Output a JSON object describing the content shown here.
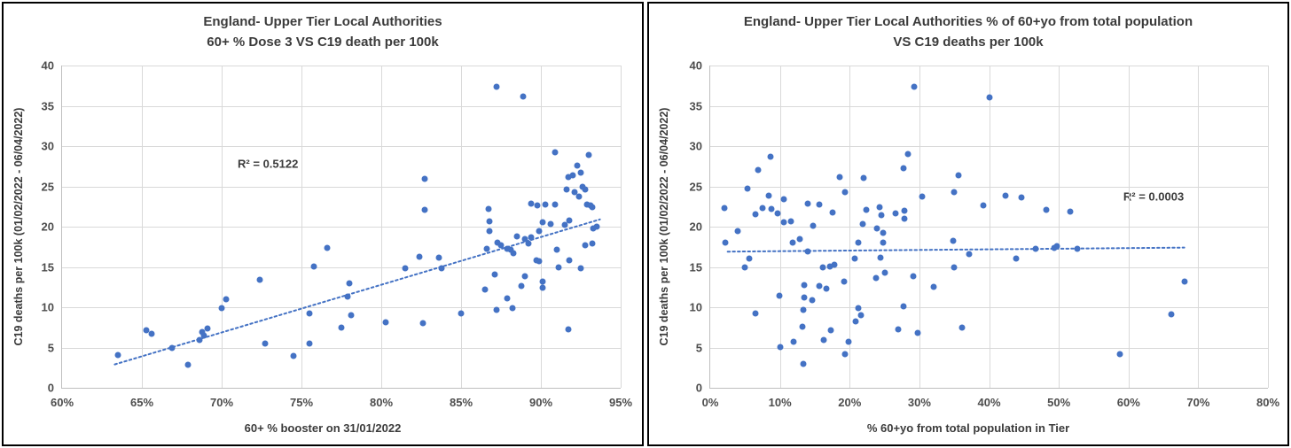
{
  "page": {
    "background": "#ffffff"
  },
  "colors": {
    "point": "#4472C4",
    "trendline": "#4472C4",
    "gridline": "#D9D9D9",
    "axis_line": "#BFBFBF",
    "panel_border": "#000000",
    "title_text": "#3b3b3b",
    "tick_text": "#4d4d4d",
    "r2_text": "#3b3b3b"
  },
  "chart_data": [
    {
      "type": "scatter",
      "title_line1": "England- Upper Tier Local Authorities",
      "title_line2": "60+ % Dose 3 VS C19 death per 100k",
      "xlabel": "60+ % booster on 31/01/2022",
      "ylabel": "C19 deaths per 100k (01/02/2022 - 06/04/2022)",
      "r_squared_label": "R² = 0.5122",
      "r_squared_value": 0.5122,
      "r2_pos": {
        "x": 72.9,
        "y": 27.8
      },
      "xlim": [
        60,
        95
      ],
      "ylim": [
        0,
        40
      ],
      "x_ticks": [
        {
          "value": 60,
          "label": "60%"
        },
        {
          "value": 65,
          "label": "65%"
        },
        {
          "value": 70,
          "label": "70%"
        },
        {
          "value": 75,
          "label": "75%"
        },
        {
          "value": 80,
          "label": "80%"
        },
        {
          "value": 85,
          "label": "85%"
        },
        {
          "value": 90,
          "label": "90%"
        },
        {
          "value": 95,
          "label": "95%"
        }
      ],
      "y_ticks": [
        {
          "value": 0,
          "label": "0"
        },
        {
          "value": 5,
          "label": "5"
        },
        {
          "value": 10,
          "label": "10"
        },
        {
          "value": 15,
          "label": "15"
        },
        {
          "value": 20,
          "label": "20"
        },
        {
          "value": 25,
          "label": "25"
        },
        {
          "value": 30,
          "label": "30"
        },
        {
          "value": 35,
          "label": "35"
        },
        {
          "value": 40,
          "label": "40"
        }
      ],
      "trendline": {
        "style": "dotted",
        "x1": 63.3,
        "y1": 2.9,
        "x2": 93.7,
        "y2": 20.9
      },
      "points": [
        [
          63.5,
          4.1
        ],
        [
          65.3,
          7.1
        ],
        [
          65.6,
          6.7
        ],
        [
          66.9,
          5.0
        ],
        [
          67.9,
          2.9
        ],
        [
          68.6,
          5.9
        ],
        [
          68.8,
          6.9
        ],
        [
          68.9,
          6.5
        ],
        [
          69.1,
          7.4
        ],
        [
          70.0,
          9.9
        ],
        [
          70.3,
          11.0
        ],
        [
          72.4,
          13.4
        ],
        [
          72.7,
          5.5
        ],
        [
          74.5,
          4.0
        ],
        [
          75.5,
          9.2
        ],
        [
          75.5,
          5.5
        ],
        [
          75.8,
          15.1
        ],
        [
          76.6,
          17.4
        ],
        [
          77.5,
          7.5
        ],
        [
          78.0,
          13.0
        ],
        [
          77.9,
          11.3
        ],
        [
          78.1,
          9.0
        ],
        [
          80.3,
          8.1
        ],
        [
          81.5,
          14.8
        ],
        [
          82.4,
          16.3
        ],
        [
          82.6,
          8.0
        ],
        [
          82.7,
          25.9
        ],
        [
          82.7,
          22.1
        ],
        [
          83.6,
          16.1
        ],
        [
          83.8,
          14.8
        ],
        [
          85.0,
          9.2
        ],
        [
          86.5,
          12.2
        ],
        [
          86.6,
          17.2
        ],
        [
          86.7,
          22.2
        ],
        [
          86.8,
          20.7
        ],
        [
          86.8,
          19.5
        ],
        [
          87.2,
          37.4
        ],
        [
          87.1,
          14.1
        ],
        [
          87.2,
          9.7
        ],
        [
          87.3,
          18.0
        ],
        [
          87.5,
          17.7
        ],
        [
          87.9,
          17.2
        ],
        [
          87.9,
          11.1
        ],
        [
          88.1,
          17.1
        ],
        [
          88.2,
          9.9
        ],
        [
          88.3,
          16.7
        ],
        [
          88.5,
          18.8
        ],
        [
          88.8,
          12.6
        ],
        [
          88.9,
          36.1
        ],
        [
          89.0,
          18.5
        ],
        [
          89.0,
          13.8
        ],
        [
          89.2,
          17.9
        ],
        [
          89.4,
          22.9
        ],
        [
          89.4,
          18.7
        ],
        [
          89.8,
          22.6
        ],
        [
          89.7,
          15.8
        ],
        [
          89.9,
          15.7
        ],
        [
          89.9,
          19.4
        ],
        [
          90.1,
          13.2
        ],
        [
          90.1,
          12.4
        ],
        [
          90.1,
          20.5
        ],
        [
          90.3,
          22.8
        ],
        [
          90.6,
          20.3
        ],
        [
          90.9,
          29.2
        ],
        [
          90.9,
          22.7
        ],
        [
          91.0,
          17.1
        ],
        [
          91.1,
          14.9
        ],
        [
          91.5,
          20.2
        ],
        [
          91.6,
          24.6
        ],
        [
          91.7,
          26.2
        ],
        [
          91.8,
          20.8
        ],
        [
          91.8,
          15.8
        ],
        [
          91.7,
          7.2
        ],
        [
          92.0,
          26.4
        ],
        [
          92.1,
          24.3
        ],
        [
          92.3,
          27.6
        ],
        [
          92.4,
          23.7
        ],
        [
          92.5,
          26.7
        ],
        [
          92.5,
          14.8
        ],
        [
          92.6,
          24.9
        ],
        [
          92.8,
          24.6
        ],
        [
          92.8,
          17.7
        ],
        [
          93.0,
          28.9
        ],
        [
          92.9,
          22.8
        ],
        [
          93.1,
          22.6
        ],
        [
          93.2,
          22.4
        ],
        [
          93.2,
          17.9
        ],
        [
          93.3,
          19.8
        ],
        [
          93.5,
          20.0
        ]
      ]
    },
    {
      "type": "scatter",
      "title_line1": "England- Upper Tier Local Authorities % of 60+yo from total population",
      "title_line2": "VS C19 deaths per 100k",
      "xlabel": "% 60+yo from total population in Tier",
      "ylabel": "C19 deaths per 100k (01/02/2022 - 06/04/2022)",
      "r_squared_label": "R² = 0.0003",
      "r_squared_value": 0.0003,
      "r2_pos": {
        "x": 63.6,
        "y": 23.7
      },
      "xlim": [
        0,
        80
      ],
      "ylim": [
        0,
        40
      ],
      "x_ticks": [
        {
          "value": 0,
          "label": "0%"
        },
        {
          "value": 10,
          "label": "10%"
        },
        {
          "value": 20,
          "label": "20%"
        },
        {
          "value": 30,
          "label": "30%"
        },
        {
          "value": 40,
          "label": "40%"
        },
        {
          "value": 50,
          "label": "50%"
        },
        {
          "value": 60,
          "label": "60%"
        },
        {
          "value": 70,
          "label": "70%"
        },
        {
          "value": 80,
          "label": "80%"
        }
      ],
      "y_ticks": [
        {
          "value": 0,
          "label": "0"
        },
        {
          "value": 5,
          "label": "5"
        },
        {
          "value": 10,
          "label": "10"
        },
        {
          "value": 15,
          "label": "15"
        },
        {
          "value": 20,
          "label": "20"
        },
        {
          "value": 25,
          "label": "25"
        },
        {
          "value": 30,
          "label": "30"
        },
        {
          "value": 35,
          "label": "35"
        },
        {
          "value": 40,
          "label": "40"
        }
      ],
      "trendline": {
        "style": "dotted",
        "x1": 2.5,
        "y1": 16.9,
        "x2": 68.0,
        "y2": 17.4
      },
      "points": [
        [
          29.3,
          37.4
        ],
        [
          40.0,
          36.0
        ],
        [
          8.6,
          28.7
        ],
        [
          28.4,
          29.0
        ],
        [
          6.9,
          27.0
        ],
        [
          27.7,
          27.2
        ],
        [
          18.6,
          26.2
        ],
        [
          22.0,
          26.0
        ],
        [
          35.6,
          26.4
        ],
        [
          5.3,
          24.7
        ],
        [
          35.0,
          24.3
        ],
        [
          19.3,
          24.3
        ],
        [
          8.4,
          23.9
        ],
        [
          30.4,
          23.7
        ],
        [
          42.4,
          23.8
        ],
        [
          44.6,
          23.6
        ],
        [
          10.6,
          23.4
        ],
        [
          14.0,
          22.9
        ],
        [
          15.7,
          22.7
        ],
        [
          2.0,
          22.3
        ],
        [
          7.5,
          22.3
        ],
        [
          8.8,
          22.2
        ],
        [
          9.7,
          21.7
        ],
        [
          6.5,
          21.5
        ],
        [
          17.6,
          21.8
        ],
        [
          22.4,
          22.1
        ],
        [
          24.3,
          22.4
        ],
        [
          24.5,
          21.4
        ],
        [
          26.6,
          21.6
        ],
        [
          27.9,
          22.0
        ],
        [
          27.8,
          21.0
        ],
        [
          39.2,
          22.6
        ],
        [
          48.2,
          22.1
        ],
        [
          51.7,
          21.9
        ],
        [
          10.5,
          20.6
        ],
        [
          11.6,
          20.7
        ],
        [
          14.7,
          20.1
        ],
        [
          21.9,
          20.3
        ],
        [
          23.9,
          19.8
        ],
        [
          4.0,
          19.5
        ],
        [
          24.8,
          19.2
        ],
        [
          2.1,
          18.0
        ],
        [
          11.8,
          18.0
        ],
        [
          12.8,
          18.5
        ],
        [
          21.3,
          18.0
        ],
        [
          24.8,
          18.0
        ],
        [
          34.9,
          18.2
        ],
        [
          14.0,
          16.9
        ],
        [
          24.4,
          16.2
        ],
        [
          5.6,
          16.0
        ],
        [
          20.7,
          16.0
        ],
        [
          37.2,
          16.6
        ],
        [
          43.9,
          16.0
        ],
        [
          46.7,
          17.3
        ],
        [
          49.4,
          17.4
        ],
        [
          49.7,
          17.6
        ],
        [
          52.7,
          17.3
        ],
        [
          4.9,
          14.9
        ],
        [
          16.1,
          15.0
        ],
        [
          17.2,
          15.1
        ],
        [
          17.8,
          15.3
        ],
        [
          35.0,
          15.0
        ],
        [
          23.8,
          13.6
        ],
        [
          25.0,
          14.3
        ],
        [
          29.1,
          13.9
        ],
        [
          19.2,
          13.2
        ],
        [
          13.5,
          12.7
        ],
        [
          15.7,
          12.6
        ],
        [
          16.7,
          12.3
        ],
        [
          32.1,
          12.5
        ],
        [
          68.1,
          13.2
        ],
        [
          9.9,
          11.4
        ],
        [
          13.5,
          11.2
        ],
        [
          14.6,
          10.9
        ],
        [
          13.4,
          9.7
        ],
        [
          6.5,
          9.2
        ],
        [
          21.2,
          9.9
        ],
        [
          21.6,
          9.0
        ],
        [
          20.9,
          8.2
        ],
        [
          66.1,
          9.1
        ],
        [
          27.7,
          10.1
        ],
        [
          26.9,
          7.3
        ],
        [
          29.7,
          6.8
        ],
        [
          36.1,
          7.5
        ],
        [
          13.2,
          7.6
        ],
        [
          17.3,
          7.1
        ],
        [
          19.9,
          5.7
        ],
        [
          16.3,
          5.9
        ],
        [
          11.9,
          5.7
        ],
        [
          10.1,
          5.1
        ],
        [
          19.3,
          4.2
        ],
        [
          58.7,
          4.2
        ],
        [
          13.3,
          3.0
        ]
      ]
    }
  ]
}
